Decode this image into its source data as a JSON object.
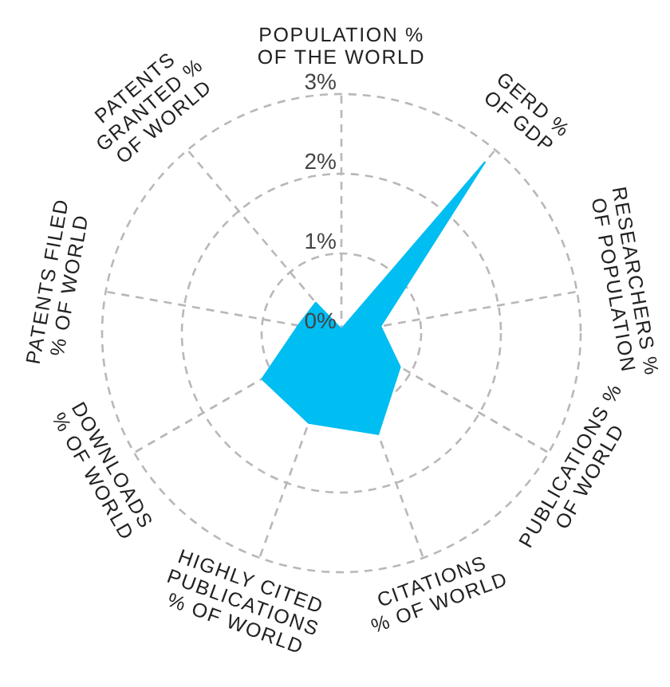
{
  "chart_data": {
    "type": "radar",
    "categories": [
      "POPULATION %\nOF THE WORLD",
      "GERD %\nOF GDP",
      "RESEARCHERS %\nOF POPULATION",
      "PUBLICATIONS %\nOF WORLD",
      "CITATIONS\n% OF WORLD",
      "HIGHLY CITED\nPUBLICATIONS\n% OF WORLD",
      "DOWNLOADS\n% OF WORLD",
      "PATENTS FILED\n% OF WORLD",
      "PATENTS\nGRANTED %\nOF WORLD"
    ],
    "series": [
      {
        "color": "#00bdf2",
        "values": [
          0.05,
          2.8,
          0.5,
          0.85,
          1.35,
          1.2,
          1.15,
          0.55,
          0.5
        ]
      }
    ],
    "ylim": [
      0,
      3
    ],
    "yticks": [
      {
        "value": 0,
        "label": "0%"
      },
      {
        "value": 1,
        "label": "1%"
      },
      {
        "value": 2,
        "label": "2%"
      },
      {
        "value": 3,
        "label": "3%"
      }
    ],
    "grid": true
  }
}
